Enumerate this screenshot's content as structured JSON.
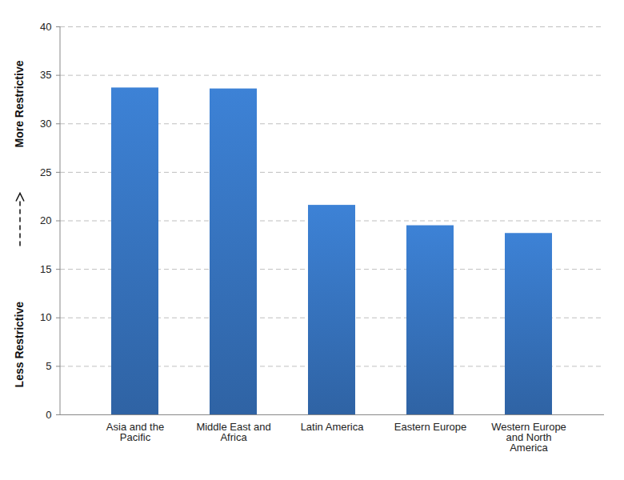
{
  "chart_data": {
    "type": "bar",
    "ylabel_top": "More Restrictive",
    "ylabel_bottom": "Less Restrictive",
    "categories": [
      "Asia and the Pacific",
      "Middle East and Africa",
      "Latin America",
      "Eastern Europe",
      "Western Europe and North America"
    ],
    "values": [
      33.7,
      33.6,
      21.6,
      19.5,
      18.7
    ],
    "color": "#3a7bcb",
    "ylim": [
      0,
      40
    ],
    "yticks": [
      0,
      5,
      10,
      15,
      20,
      25,
      30,
      35,
      40
    ],
    "grid": true
  }
}
